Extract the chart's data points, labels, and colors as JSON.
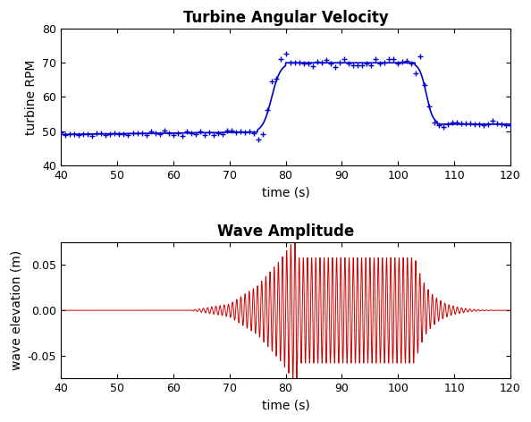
{
  "title1": "Turbine Angular Velocity",
  "title2": "Wave Amplitude",
  "xlabel": "time (s)",
  "ylabel1": "turbine RPM",
  "ylabel2": "wave elevation (m)",
  "xlim": [
    40,
    120
  ],
  "ylim1": [
    40,
    80
  ],
  "ylim2": [
    -0.075,
    0.075
  ],
  "xticks": [
    40,
    50,
    60,
    70,
    80,
    90,
    100,
    110,
    120
  ],
  "yticks1": [
    40,
    50,
    60,
    70,
    80
  ],
  "yticks2": [
    -0.05,
    0,
    0.05
  ],
  "line_color1": "#0000cc",
  "line_color2": "#cc0000",
  "background_color": "#ffffff",
  "fig_width": 5.94,
  "fig_height": 4.72,
  "dpi": 100
}
